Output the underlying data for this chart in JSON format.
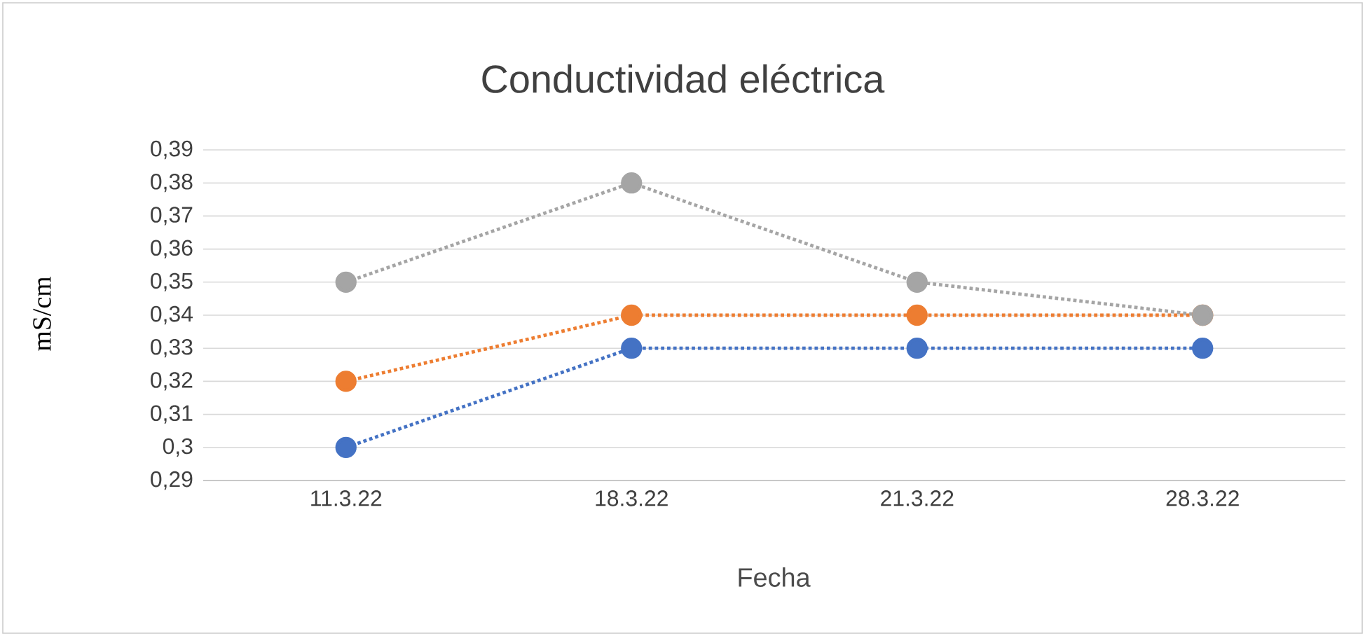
{
  "chart_data": {
    "type": "line",
    "title": "Conductividad eléctrica",
    "xlabel": "Fecha",
    "ylabel": "mS/cm",
    "categories": [
      "11.3.22",
      "18.3.22",
      "21.3.22",
      "28.3.22"
    ],
    "series": [
      {
        "color": "#4472c4",
        "values": [
          0.3,
          0.33,
          0.33,
          0.33
        ]
      },
      {
        "color": "#ed7d31",
        "values": [
          0.32,
          0.34,
          0.34,
          0.34
        ]
      },
      {
        "color": "#a5a5a5",
        "values": [
          0.35,
          0.38,
          0.35,
          0.34
        ]
      }
    ],
    "ylim": [
      0.29,
      0.39
    ],
    "yticks": [
      {
        "value": 0.29,
        "label": "0,29"
      },
      {
        "value": 0.3,
        "label": "0,3"
      },
      {
        "value": 0.31,
        "label": "0,31"
      },
      {
        "value": 0.32,
        "label": "0,32"
      },
      {
        "value": 0.33,
        "label": "0,33"
      },
      {
        "value": 0.34,
        "label": "0,34"
      },
      {
        "value": 0.35,
        "label": "0,35"
      },
      {
        "value": 0.36,
        "label": "0,36"
      },
      {
        "value": 0.37,
        "label": "0,37"
      },
      {
        "value": 0.38,
        "label": "0,38"
      },
      {
        "value": 0.39,
        "label": "0,39"
      }
    ],
    "grid": "y",
    "marker": "circle",
    "line_style": "dotted"
  }
}
